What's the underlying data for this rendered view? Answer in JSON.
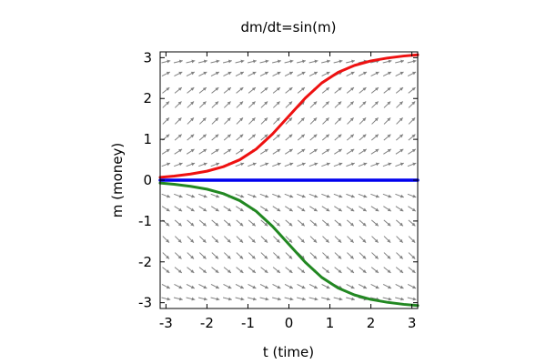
{
  "chart_data": {
    "type": "line",
    "title": "dm/dt=sin(m)",
    "xlabel": "t (time)",
    "ylabel": "m (money)",
    "xlim": [
      -3.14159,
      3.14159
    ],
    "ylim": [
      -3.14159,
      3.14159
    ],
    "x_ticks": [
      "-3",
      "-2",
      "-1",
      "0",
      "1",
      "2",
      "3"
    ],
    "y_ticks": [
      "3",
      "2",
      "1",
      "0",
      "-1",
      "-2",
      "-3"
    ],
    "grid": false,
    "legend": "none",
    "direction_field": {
      "equation": "dm/dt = sin(m)",
      "color": "#808080",
      "t_values": [
        -3.0,
        -2.7,
        -2.4,
        -2.1,
        -1.8,
        -1.5,
        -1.2,
        -0.9,
        -0.6,
        -0.3,
        0.0,
        0.3,
        0.6,
        0.9,
        1.2,
        1.5,
        1.8,
        2.1,
        2.4,
        2.7,
        3.0
      ],
      "m_values": [
        2.9,
        2.6,
        2.2,
        1.85,
        1.45,
        1.05,
        0.7,
        0.38,
        -0.38,
        -0.7,
        -1.05,
        -1.45,
        -1.85,
        -2.2,
        -2.6,
        -2.9
      ]
    },
    "series": [
      {
        "color": "#ee1111",
        "x": [
          -3.14159,
          -2.8,
          -2.4,
          -2.0,
          -1.6,
          -1.2,
          -0.8,
          -0.4,
          0.0,
          0.4,
          0.8,
          1.2,
          1.6,
          2.0,
          2.4,
          2.8,
          3.14159
        ],
        "y": [
          0.07,
          0.1,
          0.15,
          0.22,
          0.33,
          0.5,
          0.76,
          1.13,
          1.57,
          2.01,
          2.38,
          2.64,
          2.81,
          2.92,
          2.99,
          3.04,
          3.07
        ]
      },
      {
        "color": "#0000ee",
        "x": [
          -3.14159,
          3.14159
        ],
        "y": [
          0,
          0
        ]
      },
      {
        "color": "#228822",
        "x": [
          -3.14159,
          -2.8,
          -2.4,
          -2.0,
          -1.6,
          -1.2,
          -0.8,
          -0.4,
          0.0,
          0.4,
          0.8,
          1.2,
          1.6,
          2.0,
          2.4,
          2.8,
          3.14159
        ],
        "y": [
          -0.07,
          -0.1,
          -0.15,
          -0.22,
          -0.33,
          -0.5,
          -0.76,
          -1.13,
          -1.57,
          -2.01,
          -2.38,
          -2.64,
          -2.81,
          -2.92,
          -2.99,
          -3.04,
          -3.07
        ]
      }
    ]
  }
}
